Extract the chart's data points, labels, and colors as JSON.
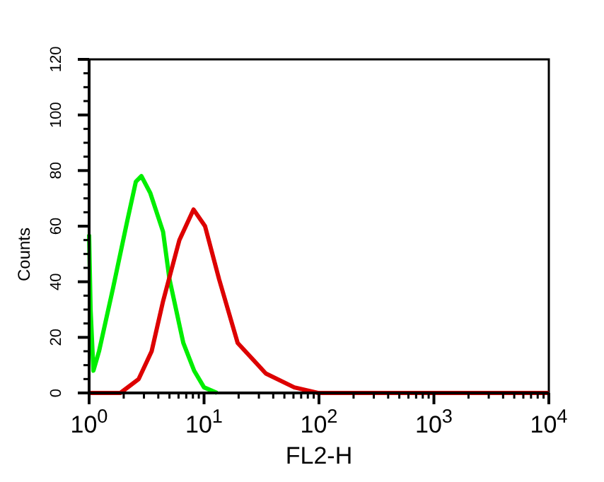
{
  "chart_data": {
    "type": "line",
    "xlabel": "FL2-H",
    "ylabel": "Counts",
    "log": "x",
    "xlim": [
      1,
      10000
    ],
    "xticks": [
      {
        "value": 1,
        "label": "10$^{0}$"
      },
      {
        "value": 10,
        "label": "10$^{1}$"
      },
      {
        "value": 100,
        "label": "10$^{2}$"
      },
      {
        "value": 1000,
        "label": "10$^{3}$"
      },
      {
        "value": 10000,
        "label": "10$^{4}$"
      }
    ],
    "ylim": [
      0,
      120
    ],
    "yticks": [
      0,
      20,
      40,
      60,
      80,
      100,
      120
    ],
    "grid": false,
    "marker": "none",
    "line_style": "solid",
    "series": [
      {
        "color": "#00ee00",
        "x": [
          1,
          1.03,
          1.09,
          1.22,
          1.62,
          2.15,
          2.55,
          2.85,
          3.4,
          4.4,
          5.0,
          6.6,
          8.2,
          10,
          13
        ],
        "values": [
          57,
          30,
          8,
          15,
          38,
          62,
          76,
          78,
          72,
          58,
          41,
          18,
          8,
          2,
          0
        ]
      },
      {
        "color": "#dd0000",
        "x": [
          1,
          1.87,
          2.7,
          3.5,
          4.4,
          6.1,
          8.1,
          10.2,
          13.5,
          19.6,
          34.5,
          61,
          98,
          10000
        ],
        "values": [
          0,
          0,
          5,
          15,
          33,
          55,
          66,
          60,
          41,
          18,
          7,
          2,
          0,
          0
        ]
      }
    ]
  }
}
